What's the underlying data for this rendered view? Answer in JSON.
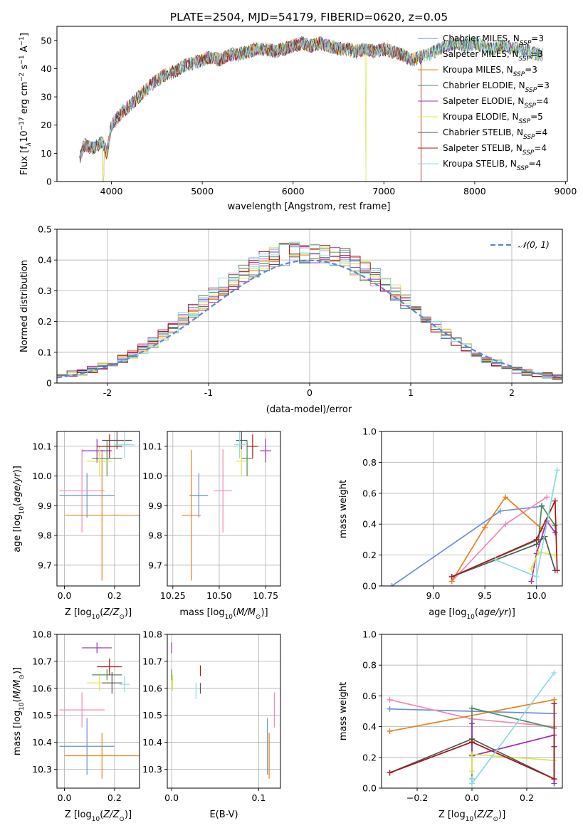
{
  "figure": {
    "title": "PLATE=2504, MJD=54179, FIBERID=0620, z=0.05",
    "colors": {
      "Chabrier MILES": "#6a8fd8",
      "Salpeter MILES": "#ee88b8",
      "Kroupa MILES": "#e8801c",
      "Chabrier ELODIE": "#4f8a5a",
      "Salpeter ELODIE": "#9b2fae",
      "Kroupa ELODIE": "#d8e84a",
      "Chabrier STELIB": "#555555",
      "Salpeter STELIB": "#a01818",
      "Kroupa STELIB": "#88dce0"
    }
  },
  "chart_data": [
    {
      "id": "spectrum",
      "type": "line",
      "xlabel": "wavelength [Angstrom, rest frame]",
      "ylabel_parts": [
        "Flux [f",
        "λ",
        "10",
        "−17",
        " erg cm",
        "−2",
        " s",
        "−1",
        " A",
        "−1",
        "]"
      ],
      "xlim": [
        3400,
        9020
      ],
      "ylim": [
        0,
        55
      ],
      "xticks": [
        4000,
        5000,
        6000,
        7000,
        8000,
        9000
      ],
      "yticks": [
        0,
        10,
        20,
        30,
        40,
        50
      ],
      "grid": false,
      "legend_position": "right",
      "continuum": {
        "x": [
          3650,
          3700,
          3800,
          3900,
          3950,
          4000,
          4100,
          4200,
          4300,
          4400,
          4500,
          4600,
          4700,
          4800,
          4900,
          5000,
          5100,
          5200,
          5300,
          5400,
          5500,
          5600,
          5700,
          5800,
          5900,
          6000,
          6100,
          6200,
          6300,
          6400,
          6500,
          6600,
          6700,
          6800,
          6900,
          7000,
          7100,
          7200,
          7300,
          7400,
          7500,
          7600,
          7700,
          7800,
          7900,
          8000,
          8100,
          8200,
          8300,
          8400,
          8500,
          8600,
          8700,
          8750
        ],
        "y": [
          8,
          13,
          12,
          14,
          10,
          20,
          24,
          27,
          30,
          33,
          36,
          38,
          39,
          41,
          42,
          43,
          44,
          43,
          45,
          45,
          46,
          47,
          47,
          46,
          47,
          48,
          49,
          48,
          49,
          48,
          47,
          47,
          46,
          47,
          46,
          47,
          46,
          45,
          43,
          44,
          45,
          47,
          48,
          49,
          48,
          49,
          48,
          47,
          48,
          47,
          47,
          46,
          45,
          45
        ]
      },
      "series": [
        {
          "name": "Chabrier MILES",
          "ssp": "3"
        },
        {
          "name": "Salpeter MILES",
          "ssp": "3"
        },
        {
          "name": "Kroupa MILES",
          "ssp": "3"
        },
        {
          "name": "Chabrier ELODIE",
          "ssp": "3"
        },
        {
          "name": "Salpeter ELODIE",
          "ssp": "4"
        },
        {
          "name": "Kroupa ELODIE",
          "ssp": "5"
        },
        {
          "name": "Chabrier STELIB",
          "ssp": "4"
        },
        {
          "name": "Salpeter STELIB",
          "ssp": "4"
        },
        {
          "name": "Kroupa STELIB",
          "ssp": "4"
        }
      ]
    },
    {
      "id": "residuals",
      "type": "line",
      "xlabel": "(data-model)/error",
      "ylabel": "Normed distribution",
      "xlim": [
        -2.5,
        2.5
      ],
      "ylim": [
        0,
        0.5
      ],
      "xticks": [
        -2,
        -1,
        0,
        1,
        2
      ],
      "yticks": [
        0.0,
        0.1,
        0.2,
        0.3,
        0.4,
        0.5
      ],
      "grid": true,
      "legend_position": "top-right",
      "legend_label": "𝒩(0, 1)",
      "bin_width": 0.1,
      "histogram_shape": {
        "x": [
          -2.45,
          -2.35,
          -2.25,
          -2.15,
          -2.05,
          -1.95,
          -1.85,
          -1.75,
          -1.65,
          -1.55,
          -1.45,
          -1.35,
          -1.25,
          -1.15,
          -1.05,
          -0.95,
          -0.85,
          -0.75,
          -0.65,
          -0.55,
          -0.45,
          -0.35,
          -0.25,
          -0.15,
          -0.05,
          0.05,
          0.15,
          0.25,
          0.35,
          0.45,
          0.55,
          0.65,
          0.75,
          0.85,
          0.95,
          1.05,
          1.15,
          1.25,
          1.35,
          1.45,
          1.55,
          1.65,
          1.75,
          1.85,
          1.95,
          2.05,
          2.15,
          2.25,
          2.35,
          2.45
        ],
        "y": [
          0.028,
          0.033,
          0.036,
          0.043,
          0.052,
          0.064,
          0.078,
          0.093,
          0.112,
          0.132,
          0.158,
          0.183,
          0.208,
          0.238,
          0.262,
          0.287,
          0.312,
          0.335,
          0.358,
          0.378,
          0.395,
          0.408,
          0.418,
          0.423,
          0.422,
          0.42,
          0.418,
          0.412,
          0.402,
          0.385,
          0.365,
          0.342,
          0.318,
          0.292,
          0.265,
          0.24,
          0.212,
          0.184,
          0.158,
          0.134,
          0.113,
          0.094,
          0.078,
          0.063,
          0.052,
          0.042,
          0.035,
          0.029,
          0.024,
          0.021
        ]
      }
    },
    {
      "id": "age_vs_Z",
      "type": "scatter",
      "xlabel": "Z [log10(Z/Z⊙)]",
      "ylabel": "age  [log10(age/yr)]",
      "xlim": [
        -0.03,
        0.3
      ],
      "ylim": [
        9.63,
        10.15
      ],
      "xticks": [
        "0.0",
        "0.2"
      ],
      "yticks": [
        "9.7",
        "9.8",
        "9.9",
        "10.0",
        "10.1"
      ],
      "grid": true,
      "points": [
        {
          "series": "Chabrier MILES",
          "x": 0.09,
          "y": 9.935,
          "xerr": 0.11,
          "yerr": 0.075
        },
        {
          "series": "Salpeter MILES",
          "x": 0.07,
          "y": 9.95,
          "xerr": 0.09,
          "yerr": 0.14
        },
        {
          "series": "Kroupa MILES",
          "x": 0.15,
          "y": 9.868,
          "xerr": 0.15,
          "yerr": 0.22
        },
        {
          "series": "Chabrier ELODIE",
          "x": 0.17,
          "y": 10.06,
          "xerr": 0.06,
          "yerr": 0.06
        },
        {
          "series": "Salpeter ELODIE",
          "x": 0.13,
          "y": 10.085,
          "xerr": 0.06,
          "yerr": 0.04
        },
        {
          "series": "Kroupa ELODIE",
          "x": 0.14,
          "y": 10.05,
          "xerr": 0.05,
          "yerr": 0.05
        },
        {
          "series": "Chabrier STELIB",
          "x": 0.21,
          "y": 10.12,
          "xerr": 0.06,
          "yerr": 0.03
        },
        {
          "series": "Salpeter STELIB",
          "x": 0.18,
          "y": 10.1,
          "xerr": 0.05,
          "yerr": 0.04
        },
        {
          "series": "Kroupa STELIB",
          "x": 0.24,
          "y": 10.105,
          "xerr": 0.04,
          "yerr": 0.045
        }
      ]
    },
    {
      "id": "age_vs_mass",
      "type": "scatter",
      "xlabel": "mass [log10(M/M⊙)]",
      "xlim": [
        10.22,
        10.83
      ],
      "ylim": [
        9.63,
        10.15
      ],
      "xticks": [
        "10.25",
        "10.50",
        "10.75"
      ],
      "yticks": [
        "9.7",
        "9.8",
        "9.9",
        "10.0",
        "10.1"
      ],
      "grid": true,
      "points": [
        {
          "series": "Chabrier MILES",
          "x": 10.39,
          "y": 9.935,
          "xerr": 0.05,
          "yerr": 0.075
        },
        {
          "series": "Salpeter MILES",
          "x": 10.52,
          "y": 9.95,
          "xerr": 0.05,
          "yerr": 0.14
        },
        {
          "series": "Kroupa MILES",
          "x": 10.35,
          "y": 9.868,
          "xerr": 0.05,
          "yerr": 0.22
        },
        {
          "series": "Chabrier ELODIE",
          "x": 10.65,
          "y": 10.06,
          "xerr": 0.03,
          "yerr": 0.06
        },
        {
          "series": "Salpeter ELODIE",
          "x": 10.75,
          "y": 10.085,
          "xerr": 0.03,
          "yerr": 0.04
        },
        {
          "series": "Kroupa ELODIE",
          "x": 10.62,
          "y": 10.05,
          "xerr": 0.03,
          "yerr": 0.05
        },
        {
          "series": "Chabrier STELIB",
          "x": 10.62,
          "y": 10.12,
          "xerr": 0.03,
          "yerr": 0.03
        },
        {
          "series": "Salpeter STELIB",
          "x": 10.68,
          "y": 10.1,
          "xerr": 0.03,
          "yerr": 0.04
        },
        {
          "series": "Kroupa STELIB",
          "x": 10.61,
          "y": 10.105,
          "xerr": 0.03,
          "yerr": 0.045
        }
      ]
    },
    {
      "id": "weight_vs_age",
      "type": "line",
      "xlabel": "age  [log10(age/yr)]",
      "ylabel": "mass weight",
      "xlim": [
        8.5,
        10.25
      ],
      "ylim": [
        0,
        1
      ],
      "xticks": [
        "9.0",
        "9.5",
        "10.0"
      ],
      "yticks": [
        "0.0",
        "0.2",
        "0.4",
        "0.6",
        "0.8",
        "1.0"
      ],
      "grid": true,
      "series": [
        {
          "name": "Chabrier MILES",
          "x": [
            8.6,
            9.65,
            10.05
          ],
          "y": [
            0.0,
            0.485,
            0.515
          ]
        },
        {
          "name": "Salpeter MILES",
          "x": [
            9.18,
            9.7,
            10.1
          ],
          "y": [
            0.03,
            0.4,
            0.575
          ]
        },
        {
          "name": "Kroupa MILES",
          "x": [
            9.18,
            9.5,
            9.7,
            10.05
          ],
          "y": [
            0.03,
            0.38,
            0.575,
            0.37
          ]
        },
        {
          "name": "Chabrier ELODIE",
          "x": [
            9.18,
            10.02,
            10.05,
            10.18
          ],
          "y": [
            0.06,
            0.3,
            0.52,
            0.39
          ]
        },
        {
          "name": "Salpeter ELODIE",
          "x": [
            9.95,
            10.0,
            10.1,
            10.18
          ],
          "y": [
            0.03,
            0.21,
            0.42,
            0.345
          ]
        },
        {
          "name": "Kroupa ELODIE",
          "x": [
            9.95,
            10.02,
            10.18
          ],
          "y": [
            0.11,
            0.22,
            0.2
          ]
        },
        {
          "name": "Chabrier STELIB",
          "x": [
            9.18,
            10.0,
            10.08,
            10.18
          ],
          "y": [
            0.06,
            0.27,
            0.32,
            0.1
          ]
        },
        {
          "name": "Salpeter STELIB",
          "x": [
            9.18,
            10.0,
            10.18,
            10.2
          ],
          "y": [
            0.06,
            0.3,
            0.55,
            0.1
          ]
        },
        {
          "name": "Kroupa STELIB",
          "x": [
            9.6,
            10.0,
            10.2
          ],
          "y": [
            0.17,
            0.06,
            0.75
          ]
        }
      ]
    },
    {
      "id": "mass_vs_Z",
      "type": "scatter",
      "xlabel": "Z [log10(Z/Z⊙)]",
      "ylabel": "mass [log10(M/M⊙)]",
      "xlim": [
        -0.03,
        0.3
      ],
      "ylim": [
        10.23,
        10.8
      ],
      "xticks": [
        "0.0",
        "0.2"
      ],
      "yticks": [
        "10.3",
        "10.4",
        "10.5",
        "10.6",
        "10.7",
        "10.8"
      ],
      "grid": true,
      "points": [
        {
          "series": "Chabrier MILES",
          "x": 0.09,
          "y": 10.385,
          "xerr": 0.11,
          "yerr": 0.105
        },
        {
          "series": "Salpeter MILES",
          "x": 0.07,
          "y": 10.52,
          "xerr": 0.09,
          "yerr": 0.065
        },
        {
          "series": "Kroupa MILES",
          "x": 0.15,
          "y": 10.35,
          "xerr": 0.15,
          "yerr": 0.085
        },
        {
          "series": "Chabrier ELODIE",
          "x": 0.17,
          "y": 10.65,
          "xerr": 0.06,
          "yerr": 0.02
        },
        {
          "series": "Salpeter ELODIE",
          "x": 0.13,
          "y": 10.75,
          "xerr": 0.06,
          "yerr": 0.02
        },
        {
          "series": "Kroupa ELODIE",
          "x": 0.14,
          "y": 10.62,
          "xerr": 0.05,
          "yerr": 0.03
        },
        {
          "series": "Chabrier STELIB",
          "x": 0.19,
          "y": 10.62,
          "xerr": 0.04,
          "yerr": 0.04
        },
        {
          "series": "Salpeter STELIB",
          "x": 0.18,
          "y": 10.68,
          "xerr": 0.05,
          "yerr": 0.03
        },
        {
          "series": "Kroupa STELIB",
          "x": 0.24,
          "y": 10.615,
          "xerr": 0.02,
          "yerr": 0.03
        }
      ]
    },
    {
      "id": "mass_vs_ebv",
      "type": "scatter",
      "xlabel": "E(B-V)",
      "xlim": [
        -0.005,
        0.125
      ],
      "ylim": [
        10.23,
        10.8
      ],
      "xticks": [
        "0.0",
        "0.1"
      ],
      "yticks": [
        "10.3",
        "10.4",
        "10.5",
        "10.6",
        "10.7",
        "10.8"
      ],
      "grid": true,
      "points": [
        {
          "series": "Chabrier MILES",
          "x": 0.11,
          "y": 10.385,
          "xerr": 0,
          "yerr": 0.105
        },
        {
          "series": "Salpeter MILES",
          "x": 0.118,
          "y": 10.52,
          "xerr": 0,
          "yerr": 0.065
        },
        {
          "series": "Kroupa MILES",
          "x": 0.112,
          "y": 10.35,
          "xerr": 0,
          "yerr": 0.085
        },
        {
          "series": "Chabrier ELODIE",
          "x": 0.0,
          "y": 10.65,
          "xerr": 0,
          "yerr": 0.02
        },
        {
          "series": "Salpeter ELODIE",
          "x": 0.0,
          "y": 10.75,
          "xerr": 0,
          "yerr": 0.02
        },
        {
          "series": "Kroupa ELODIE",
          "x": 0.001,
          "y": 10.62,
          "xerr": 0,
          "yerr": 0.03
        },
        {
          "series": "Chabrier STELIB",
          "x": 0.033,
          "y": 10.6,
          "xerr": 0,
          "yerr": 0.02
        },
        {
          "series": "Salpeter STELIB",
          "x": 0.033,
          "y": 10.665,
          "xerr": 0,
          "yerr": 0.02
        },
        {
          "series": "Kroupa STELIB",
          "x": 0.028,
          "y": 10.59,
          "xerr": 0,
          "yerr": 0.03
        }
      ]
    },
    {
      "id": "weight_vs_Z",
      "type": "line",
      "xlabel": "Z [log10(Z/Z⊙)]",
      "ylabel": "mass weight",
      "xlim": [
        -0.33,
        0.33
      ],
      "ylim": [
        0,
        1
      ],
      "xticks": [
        "−0.2",
        "0.0",
        "0.2"
      ],
      "yticks": [
        "0.0",
        "0.2",
        "0.4",
        "0.6",
        "0.8",
        "1.0"
      ],
      "grid": true,
      "series": [
        {
          "name": "Chabrier MILES",
          "x": [
            -0.3,
            0.3
          ],
          "y": [
            0.515,
            0.485
          ]
        },
        {
          "name": "Salpeter MILES",
          "x": [
            -0.3,
            0.0,
            0.3
          ],
          "y": [
            0.575,
            0.45,
            0.4
          ]
        },
        {
          "name": "Kroupa MILES",
          "x": [
            -0.3,
            0.3
          ],
          "y": [
            0.37,
            0.575
          ]
        },
        {
          "name": "Chabrier ELODIE",
          "x": [
            0.0,
            0.0,
            0.3
          ],
          "y": [
            0.06,
            0.52,
            0.39
          ]
        },
        {
          "name": "Salpeter ELODIE",
          "x": [
            0.0,
            0.0,
            0.3,
            0.3
          ],
          "y": [
            0.42,
            0.21,
            0.345,
            0.03
          ]
        },
        {
          "name": "Kroupa ELODIE",
          "x": [
            0.0,
            0.0,
            0.3
          ],
          "y": [
            0.11,
            0.22,
            0.18
          ]
        },
        {
          "name": "Chabrier STELIB",
          "x": [
            -0.3,
            0.0,
            0.3,
            0.3
          ],
          "y": [
            0.1,
            0.32,
            0.06,
            0.27
          ]
        },
        {
          "name": "Salpeter STELIB",
          "x": [
            -0.3,
            0.0,
            0.3,
            0.3
          ],
          "y": [
            0.1,
            0.3,
            0.06,
            0.55
          ]
        },
        {
          "name": "Kroupa STELIB",
          "x": [
            0.0,
            0.0,
            0.3
          ],
          "y": [
            0.06,
            0.03,
            0.75
          ]
        }
      ]
    }
  ]
}
